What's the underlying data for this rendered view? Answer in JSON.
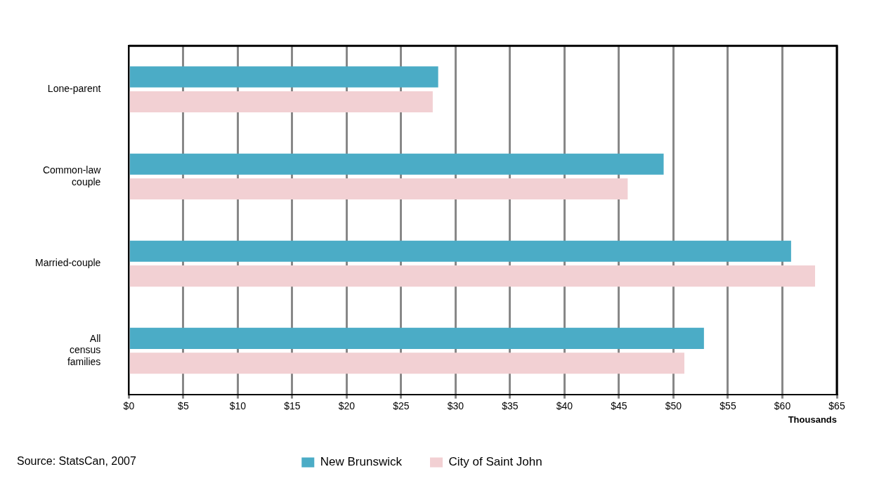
{
  "chart_data": {
    "type": "bar",
    "orientation": "horizontal",
    "categories": [
      "Lone-parent",
      "Common-law couple",
      "Married-couple",
      "All census families"
    ],
    "series": [
      {
        "name": "New Brunswick",
        "color": "#4bacc6",
        "values": [
          28.4,
          49.1,
          60.8,
          52.8
        ]
      },
      {
        "name": "City of Saint John",
        "color": "#f2d0d3",
        "values": [
          27.9,
          45.8,
          63.0,
          51.0
        ]
      }
    ],
    "xlim": [
      0,
      65
    ],
    "xticks": [
      {
        "value": 0,
        "label": "$0"
      },
      {
        "value": 5,
        "label": "$5"
      },
      {
        "value": 10,
        "label": "$10"
      },
      {
        "value": 15,
        "label": "$15"
      },
      {
        "value": 20,
        "label": "$20"
      },
      {
        "value": 25,
        "label": "$25"
      },
      {
        "value": 30,
        "label": "$30"
      },
      {
        "value": 35,
        "label": "$35"
      },
      {
        "value": 40,
        "label": "$40"
      },
      {
        "value": 45,
        "label": "$45"
      },
      {
        "value": 50,
        "label": "$50"
      },
      {
        "value": 55,
        "label": "$55"
      },
      {
        "value": 60,
        "label": "$60"
      },
      {
        "value": 65,
        "label": "$65"
      }
    ],
    "xlabel": "Thousands",
    "grid": "x",
    "legend": "bottom",
    "annotations": [
      "Source: StatsCan, 2007"
    ]
  }
}
